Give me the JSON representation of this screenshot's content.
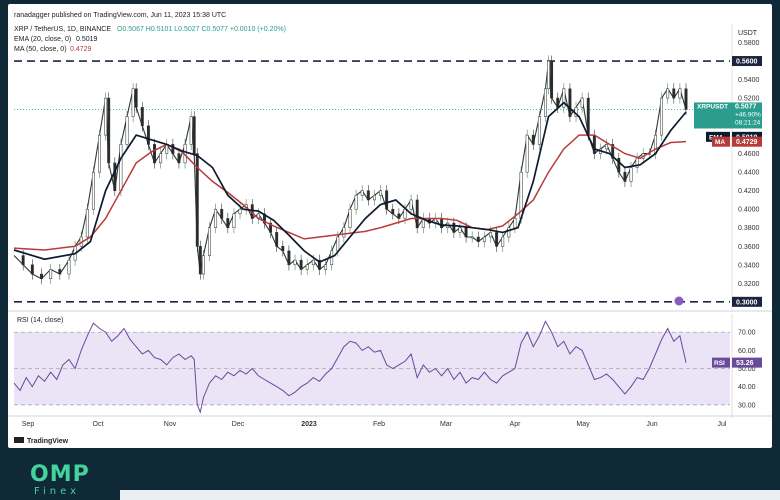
{
  "header": {
    "published": "ranadagger published on TradingView.com, Jun 11, 2023 15:38 UTC",
    "symbol_line": "XRP / TetherUS, 1D, BINANCE",
    "ohlc": "O0.5067  H0.5101  L0.5027  C0.5077  +0.0010 (+0.20%)",
    "ema_line": "EMA (20, close, 0)",
    "ema_value": "0.5019",
    "ma_line": "MA (50, close, 0)",
    "ma_value": "0.4729",
    "currency": "USDT"
  },
  "brand": {
    "tradingview": "TradingView",
    "logo": "OMP",
    "logo_sub": "Finex"
  },
  "colors": {
    "price": "#000000",
    "ema": "#0e1a2e",
    "ma": "#b83a3a",
    "rsi": "#6a4a9a",
    "rsi_band": "#ebe4f7",
    "current_label": "#2a9d8f",
    "level_line": "#1c2440"
  },
  "chart_data": [
    {
      "type": "candlestick",
      "series": [
        {
          "name": "XRP/USDT"
        },
        {
          "name": "EMA",
          "value": 0.5019
        },
        {
          "name": "MA",
          "value": 0.4729
        }
      ],
      "x_ticks": [
        "Sep",
        "Oct",
        "Nov",
        "Dec",
        "2023",
        "Feb",
        "Mar",
        "Apr",
        "May",
        "Jun",
        "Jul"
      ],
      "y_ticks": [
        0.58,
        0.56,
        0.54,
        0.52,
        0.5,
        0.48,
        0.46,
        0.44,
        0.42,
        0.4,
        0.38,
        0.36,
        0.34,
        0.32,
        0.3
      ],
      "y_tick_labels": [
        "0.5800",
        "0.5600",
        "0.5400",
        "0.5200",
        "0.5000",
        "0.4800",
        "0.4600",
        "0.4400",
        "0.4200",
        "0.4000",
        "0.3800",
        "0.3600",
        "0.3400",
        "0.3200",
        "0.3000"
      ],
      "ylim": [
        0.2955,
        0.5935
      ],
      "levels": [
        {
          "label": "0.5600",
          "value": 0.56
        },
        {
          "label": "0.3000",
          "value": 0.3
        }
      ],
      "current": {
        "symbol": "XRPUSDT",
        "price": "0.5077",
        "change": "+46.90%",
        "countdown": "08:21:24",
        "value": 0.5077
      },
      "ema_label": {
        "name": "EMA",
        "text": "0.5019",
        "value": 0.5019
      },
      "ma_label": {
        "name": "MA",
        "text": "0.4729",
        "value": 0.4729
      },
      "ema_path": [
        [
          0,
          0.356
        ],
        [
          10,
          0.346
        ],
        [
          20,
          0.352
        ],
        [
          25,
          0.365
        ],
        [
          30,
          0.42
        ],
        [
          35,
          0.455
        ],
        [
          40,
          0.48
        ],
        [
          45,
          0.475
        ],
        [
          50,
          0.47
        ],
        [
          55,
          0.463
        ],
        [
          60,
          0.458
        ],
        [
          65,
          0.445
        ],
        [
          70,
          0.415
        ],
        [
          75,
          0.4
        ],
        [
          80,
          0.398
        ],
        [
          85,
          0.388
        ],
        [
          90,
          0.372
        ],
        [
          95,
          0.355
        ],
        [
          100,
          0.343
        ],
        [
          105,
          0.35
        ],
        [
          110,
          0.37
        ],
        [
          115,
          0.39
        ],
        [
          120,
          0.405
        ],
        [
          125,
          0.41
        ],
        [
          130,
          0.395
        ],
        [
          135,
          0.388
        ],
        [
          140,
          0.383
        ],
        [
          145,
          0.382
        ],
        [
          150,
          0.38
        ],
        [
          155,
          0.378
        ],
        [
          160,
          0.375
        ],
        [
          165,
          0.38
        ],
        [
          170,
          0.43
        ],
        [
          175,
          0.5
        ],
        [
          180,
          0.515
        ],
        [
          185,
          0.5
        ],
        [
          190,
          0.465
        ],
        [
          195,
          0.46
        ],
        [
          200,
          0.445
        ],
        [
          205,
          0.448
        ],
        [
          210,
          0.46
        ],
        [
          215,
          0.485
        ],
        [
          220,
          0.505
        ]
      ],
      "ma_path": [
        [
          0,
          0.358
        ],
        [
          10,
          0.356
        ],
        [
          20,
          0.36
        ],
        [
          25,
          0.37
        ],
        [
          30,
          0.39
        ],
        [
          35,
          0.42
        ],
        [
          40,
          0.45
        ],
        [
          45,
          0.462
        ],
        [
          50,
          0.47
        ],
        [
          55,
          0.462
        ],
        [
          60,
          0.445
        ],
        [
          65,
          0.43
        ],
        [
          70,
          0.418
        ],
        [
          75,
          0.405
        ],
        [
          80,
          0.39
        ],
        [
          85,
          0.382
        ],
        [
          90,
          0.375
        ],
        [
          95,
          0.368
        ],
        [
          100,
          0.37
        ],
        [
          105,
          0.372
        ],
        [
          110,
          0.374
        ],
        [
          115,
          0.376
        ],
        [
          120,
          0.38
        ],
        [
          125,
          0.385
        ],
        [
          130,
          0.39
        ],
        [
          135,
          0.39
        ],
        [
          140,
          0.39
        ],
        [
          145,
          0.388
        ],
        [
          150,
          0.38
        ],
        [
          155,
          0.378
        ],
        [
          160,
          0.382
        ],
        [
          165,
          0.395
        ],
        [
          170,
          0.41
        ],
        [
          175,
          0.44
        ],
        [
          180,
          0.465
        ],
        [
          185,
          0.48
        ],
        [
          190,
          0.48
        ],
        [
          195,
          0.47
        ],
        [
          200,
          0.46
        ],
        [
          205,
          0.455
        ],
        [
          210,
          0.465
        ],
        [
          215,
          0.472
        ],
        [
          220,
          0.473
        ]
      ],
      "close_path": [
        [
          0,
          0.35
        ],
        [
          3,
          0.34
        ],
        [
          6,
          0.33
        ],
        [
          9,
          0.325
        ],
        [
          12,
          0.335
        ],
        [
          15,
          0.33
        ],
        [
          18,
          0.345
        ],
        [
          20,
          0.36
        ],
        [
          22,
          0.37
        ],
        [
          24,
          0.4
        ],
        [
          26,
          0.44
        ],
        [
          28,
          0.48
        ],
        [
          30,
          0.52
        ],
        [
          31,
          0.45
        ],
        [
          33,
          0.42
        ],
        [
          35,
          0.47
        ],
        [
          37,
          0.5
        ],
        [
          39,
          0.53
        ],
        [
          40,
          0.51
        ],
        [
          42,
          0.49
        ],
        [
          44,
          0.47
        ],
        [
          46,
          0.45
        ],
        [
          48,
          0.46
        ],
        [
          50,
          0.47
        ],
        [
          52,
          0.46
        ],
        [
          54,
          0.45
        ],
        [
          56,
          0.47
        ],
        [
          58,
          0.5
        ],
        [
          59,
          0.46
        ],
        [
          60,
          0.36
        ],
        [
          61,
          0.33
        ],
        [
          62,
          0.35
        ],
        [
          64,
          0.38
        ],
        [
          66,
          0.4
        ],
        [
          68,
          0.39
        ],
        [
          70,
          0.38
        ],
        [
          72,
          0.395
        ],
        [
          74,
          0.4
        ],
        [
          76,
          0.405
        ],
        [
          78,
          0.39
        ],
        [
          80,
          0.395
        ],
        [
          82,
          0.385
        ],
        [
          84,
          0.375
        ],
        [
          86,
          0.36
        ],
        [
          88,
          0.355
        ],
        [
          90,
          0.34
        ],
        [
          92,
          0.345
        ],
        [
          94,
          0.335
        ],
        [
          96,
          0.34
        ],
        [
          98,
          0.345
        ],
        [
          100,
          0.335
        ],
        [
          102,
          0.34
        ],
        [
          104,
          0.355
        ],
        [
          106,
          0.37
        ],
        [
          108,
          0.38
        ],
        [
          110,
          0.4
        ],
        [
          112,
          0.415
        ],
        [
          114,
          0.42
        ],
        [
          116,
          0.41
        ],
        [
          118,
          0.415
        ],
        [
          120,
          0.42
        ],
        [
          122,
          0.4
        ],
        [
          124,
          0.395
        ],
        [
          126,
          0.39
        ],
        [
          128,
          0.4
        ],
        [
          130,
          0.41
        ],
        [
          132,
          0.38
        ],
        [
          134,
          0.39
        ],
        [
          136,
          0.385
        ],
        [
          138,
          0.39
        ],
        [
          140,
          0.38
        ],
        [
          142,
          0.385
        ],
        [
          144,
          0.375
        ],
        [
          146,
          0.38
        ],
        [
          148,
          0.37
        ],
        [
          150,
          0.37
        ],
        [
          152,
          0.365
        ],
        [
          154,
          0.37
        ],
        [
          156,
          0.375
        ],
        [
          158,
          0.36
        ],
        [
          160,
          0.37
        ],
        [
          162,
          0.38
        ],
        [
          164,
          0.39
        ],
        [
          166,
          0.44
        ],
        [
          168,
          0.48
        ],
        [
          170,
          0.47
        ],
        [
          172,
          0.5
        ],
        [
          174,
          0.53
        ],
        [
          175,
          0.56
        ],
        [
          176,
          0.52
        ],
        [
          178,
          0.51
        ],
        [
          180,
          0.53
        ],
        [
          182,
          0.5
        ],
        [
          184,
          0.51
        ],
        [
          186,
          0.52
        ],
        [
          188,
          0.48
        ],
        [
          190,
          0.46
        ],
        [
          192,
          0.465
        ],
        [
          194,
          0.47
        ],
        [
          196,
          0.455
        ],
        [
          198,
          0.44
        ],
        [
          200,
          0.43
        ],
        [
          202,
          0.445
        ],
        [
          204,
          0.455
        ],
        [
          206,
          0.46
        ],
        [
          208,
          0.46
        ],
        [
          210,
          0.48
        ],
        [
          212,
          0.52
        ],
        [
          214,
          0.53
        ],
        [
          216,
          0.52
        ],
        [
          218,
          0.53
        ],
        [
          220,
          0.5077
        ]
      ]
    },
    {
      "type": "line",
      "series": [
        {
          "name": "RSI (14, close)",
          "value": 53.26
        }
      ],
      "title": "RSI (14, close)",
      "value_label": "53.26",
      "label_name": "RSI",
      "y_ticks": [
        70,
        60,
        50,
        40,
        30
      ],
      "y_tick_labels": [
        "70.00",
        "60.00",
        "50.00",
        "40.00",
        "30.00"
      ],
      "ylim": [
        25,
        80
      ],
      "band": [
        30,
        70
      ],
      "values": [
        [
          0,
          42
        ],
        [
          2,
          38
        ],
        [
          4,
          45
        ],
        [
          6,
          40
        ],
        [
          8,
          46
        ],
        [
          10,
          43
        ],
        [
          12,
          48
        ],
        [
          14,
          44
        ],
        [
          16,
          52
        ],
        [
          18,
          55
        ],
        [
          20,
          50
        ],
        [
          22,
          60
        ],
        [
          24,
          68
        ],
        [
          26,
          75
        ],
        [
          28,
          72
        ],
        [
          30,
          70
        ],
        [
          32,
          65
        ],
        [
          34,
          68
        ],
        [
          36,
          72
        ],
        [
          38,
          66
        ],
        [
          40,
          62
        ],
        [
          42,
          58
        ],
        [
          44,
          60
        ],
        [
          46,
          56
        ],
        [
          48,
          55
        ],
        [
          50,
          52
        ],
        [
          52,
          56
        ],
        [
          54,
          58
        ],
        [
          56,
          55
        ],
        [
          58,
          57
        ],
        [
          59,
          55
        ],
        [
          60,
          30
        ],
        [
          61,
          26
        ],
        [
          62,
          34
        ],
        [
          64,
          42
        ],
        [
          66,
          46
        ],
        [
          68,
          44
        ],
        [
          70,
          48
        ],
        [
          72,
          46
        ],
        [
          74,
          49
        ],
        [
          76,
          47
        ],
        [
          78,
          50
        ],
        [
          80,
          46
        ],
        [
          82,
          44
        ],
        [
          84,
          42
        ],
        [
          86,
          40
        ],
        [
          88,
          38
        ],
        [
          90,
          35
        ],
        [
          92,
          37
        ],
        [
          94,
          40
        ],
        [
          96,
          42
        ],
        [
          98,
          45
        ],
        [
          100,
          43
        ],
        [
          102,
          47
        ],
        [
          104,
          50
        ],
        [
          106,
          56
        ],
        [
          108,
          62
        ],
        [
          110,
          65
        ],
        [
          112,
          64
        ],
        [
          114,
          60
        ],
        [
          116,
          62
        ],
        [
          118,
          59
        ],
        [
          120,
          60
        ],
        [
          122,
          52
        ],
        [
          124,
          50
        ],
        [
          126,
          52
        ],
        [
          128,
          54
        ],
        [
          130,
          58
        ],
        [
          132,
          45
        ],
        [
          134,
          52
        ],
        [
          136,
          48
        ],
        [
          138,
          50
        ],
        [
          140,
          46
        ],
        [
          142,
          50
        ],
        [
          144,
          44
        ],
        [
          146,
          48
        ],
        [
          148,
          42
        ],
        [
          150,
          45
        ],
        [
          152,
          44
        ],
        [
          154,
          48
        ],
        [
          156,
          44
        ],
        [
          158,
          42
        ],
        [
          160,
          46
        ],
        [
          162,
          48
        ],
        [
          164,
          50
        ],
        [
          166,
          64
        ],
        [
          168,
          70
        ],
        [
          170,
          62
        ],
        [
          172,
          68
        ],
        [
          174,
          76
        ],
        [
          176,
          70
        ],
        [
          178,
          62
        ],
        [
          180,
          65
        ],
        [
          182,
          58
        ],
        [
          184,
          62
        ],
        [
          186,
          60
        ],
        [
          188,
          52
        ],
        [
          190,
          44
        ],
        [
          192,
          45
        ],
        [
          194,
          47
        ],
        [
          196,
          44
        ],
        [
          198,
          40
        ],
        [
          200,
          36
        ],
        [
          202,
          40
        ],
        [
          204,
          45
        ],
        [
          206,
          44
        ],
        [
          208,
          50
        ],
        [
          210,
          58
        ],
        [
          212,
          66
        ],
        [
          214,
          72
        ],
        [
          216,
          65
        ],
        [
          218,
          68
        ],
        [
          220,
          53.26
        ]
      ]
    }
  ]
}
